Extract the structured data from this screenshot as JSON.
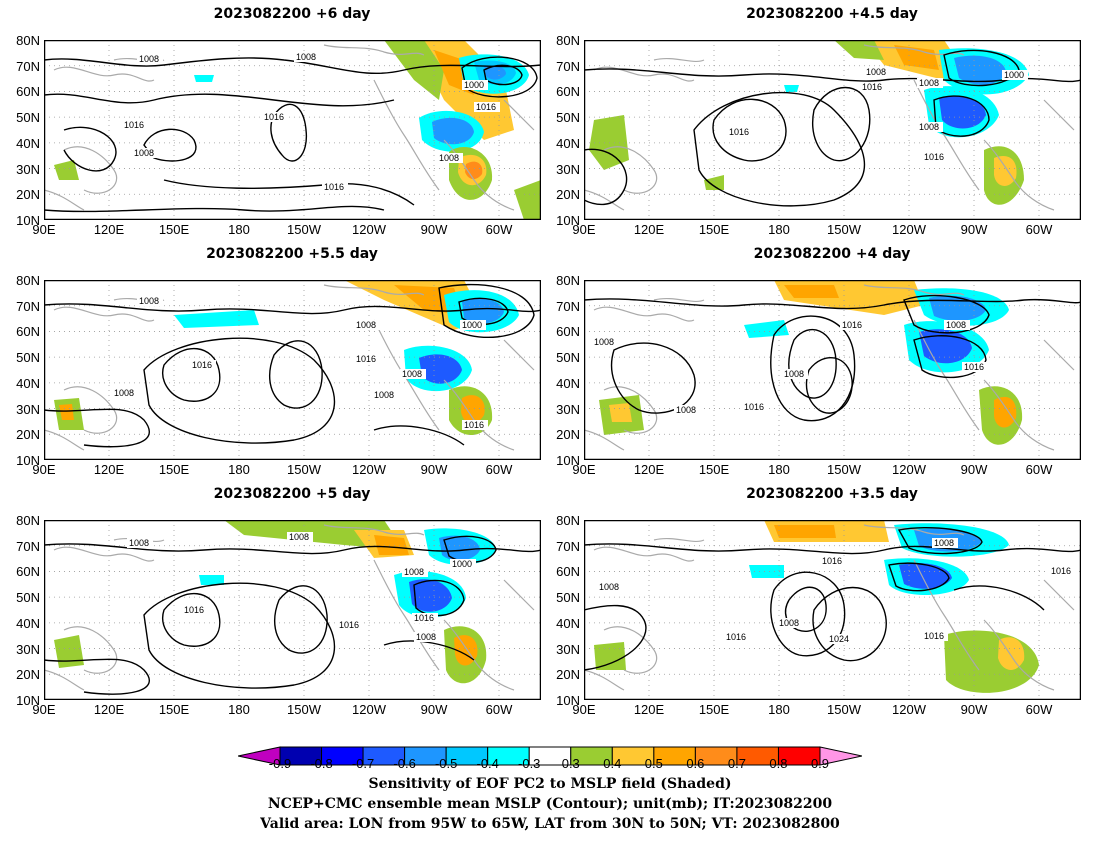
{
  "panels": [
    {
      "title": "2023082200 +6 day"
    },
    {
      "title": "2023082200 +4.5 day"
    },
    {
      "title": "2023082200 +5.5 day"
    },
    {
      "title": "2023082200 +4 day"
    },
    {
      "title": "2023082200 +5 day"
    },
    {
      "title": "2023082200 +3.5 day"
    }
  ],
  "lat_ticks": [
    "80N",
    "70N",
    "60N",
    "50N",
    "40N",
    "30N",
    "20N",
    "10N"
  ],
  "lon_ticks": [
    "90E",
    "120E",
    "150E",
    "180",
    "150W",
    "120W",
    "90W",
    "60W"
  ],
  "contour_labels": {
    "p0": [
      "1008",
      "1008",
      "1000",
      "1016",
      "1016",
      "1016",
      "1008",
      "1008",
      "1016"
    ],
    "p1": [
      "1008",
      "1016",
      "1008",
      "1000",
      "1008",
      "1016",
      "1016"
    ],
    "p2": [
      "1008",
      "1008",
      "1000",
      "1016",
      "1016",
      "1008",
      "1008",
      "1008",
      "1016"
    ],
    "p3": [
      "1008",
      "1016",
      "1008",
      "1008",
      "1008",
      "1016",
      "1016"
    ],
    "p4": [
      "1008",
      "1008",
      "1000",
      "1008",
      "1016",
      "1016",
      "1016",
      "1008"
    ],
    "p5": [
      "1008",
      "1016",
      "1008",
      "1008",
      "1024",
      "1016",
      "1016",
      "1016"
    ]
  },
  "colorbar": {
    "ticks": [
      "-0.9",
      "-0.8",
      "-0.7",
      "-0.6",
      "-0.5",
      "-0.4",
      "-0.3",
      "0.3",
      "0.4",
      "0.5",
      "0.6",
      "0.7",
      "0.8",
      "0.9"
    ],
    "colors": [
      "#c000c0",
      "#0000b0",
      "#0000ff",
      "#1e5aff",
      "#1e96ff",
      "#00c8ff",
      "#00ffff",
      "#ffffff",
      "#9acd32",
      "#ffc832",
      "#ffa500",
      "#ff8c1a",
      "#ff5a00",
      "#ff0000",
      "#ff96e6"
    ]
  },
  "caption": {
    "line1": "Sensitivity of EOF PC2 to MSLP field (Shaded)",
    "line2": "NCEP+CMC ensemble mean MSLP (Contour); unit(mb); IT:2023082200",
    "line3": "Valid area: LON from 95W to 65W, LAT from 30N to 50N; VT: 2023082800"
  }
}
